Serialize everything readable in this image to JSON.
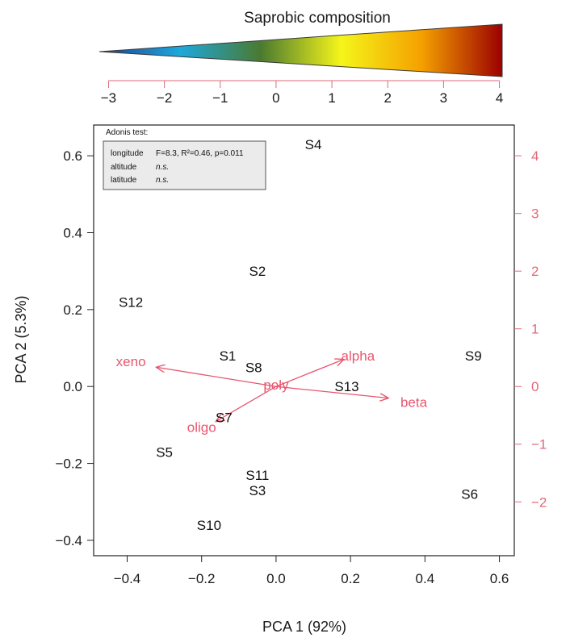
{
  "gradient_title": "Saprobic composition",
  "gradient_colors": [
    "#1f3c8f",
    "#1ea8dc",
    "#4a7a30",
    "#f5f51a",
    "#f5a000",
    "#9b0000"
  ],
  "xlabel": "PCA 1 (92%)",
  "ylabel": "PCA 2 (5.3%)",
  "legend": {
    "title": "Adonis test:",
    "rows": [
      {
        "variable": "longitude",
        "result": "F=8.3, R²=0.46, p=0.011",
        "italic": false
      },
      {
        "variable": "altitude",
        "result": "n.s.",
        "italic": true
      },
      {
        "variable": "latitude",
        "result": "n.s.",
        "italic": true
      }
    ]
  },
  "chart_data": {
    "type": "scatter",
    "xlim": [
      -0.49,
      0.64
    ],
    "ylim": [
      -0.44,
      0.68
    ],
    "xticks": [
      -0.4,
      -0.2,
      0.0,
      0.2,
      0.4,
      0.6
    ],
    "yticks": [
      -0.4,
      -0.2,
      0.0,
      0.2,
      0.4,
      0.6
    ],
    "xtick_labels": [
      "−0.4",
      "−0.2",
      "0.0",
      "0.2",
      "0.4",
      "0.6"
    ],
    "ytick_labels": [
      "−0.4",
      "−0.2",
      "0.0",
      "0.2",
      "0.4",
      "0.6"
    ],
    "secondary_x": {
      "ticks": [
        -3,
        -2,
        -1,
        0,
        1,
        2,
        3,
        4
      ],
      "labels": [
        "−3",
        "−2",
        "−1",
        "0",
        "1",
        "2",
        "3",
        "4"
      ]
    },
    "secondary_y": {
      "ticks": [
        -2,
        -1,
        0,
        1,
        2,
        3,
        4
      ],
      "labels": [
        "−2",
        "−1",
        "0",
        "1",
        "2",
        "3",
        "4"
      ]
    },
    "secondary_scale": 0.15,
    "sites": [
      {
        "label": "S4",
        "x": 0.1,
        "y": 0.63
      },
      {
        "label": "S2",
        "x": -0.05,
        "y": 0.3
      },
      {
        "label": "S12",
        "x": -0.39,
        "y": 0.22
      },
      {
        "label": "S1",
        "x": -0.13,
        "y": 0.08
      },
      {
        "label": "S8",
        "x": -0.06,
        "y": 0.05
      },
      {
        "label": "S9",
        "x": 0.53,
        "y": 0.08
      },
      {
        "label": "S13",
        "x": 0.19,
        "y": 0.0
      },
      {
        "label": "S7",
        "x": -0.14,
        "y": -0.08
      },
      {
        "label": "S5",
        "x": -0.3,
        "y": -0.17
      },
      {
        "label": "S11",
        "x": -0.05,
        "y": -0.23
      },
      {
        "label": "S3",
        "x": -0.05,
        "y": -0.27
      },
      {
        "label": "S6",
        "x": 0.52,
        "y": -0.28
      },
      {
        "label": "S10",
        "x": -0.18,
        "y": -0.36
      }
    ],
    "vectors": [
      {
        "label": "xeno",
        "x": -0.32,
        "y": 0.05,
        "lx": -0.39,
        "ly": 0.065
      },
      {
        "label": "alpha",
        "x": 0.18,
        "y": 0.07,
        "lx": 0.22,
        "ly": 0.08
      },
      {
        "label": "beta",
        "x": 0.3,
        "y": -0.03,
        "lx": 0.37,
        "ly": -0.04
      },
      {
        "label": "oligo",
        "x": -0.16,
        "y": -0.09,
        "lx": -0.2,
        "ly": -0.105
      },
      {
        "label": "poly",
        "x": 0.0,
        "y": 0.0,
        "lx": 0.0,
        "ly": 0.005
      }
    ]
  }
}
